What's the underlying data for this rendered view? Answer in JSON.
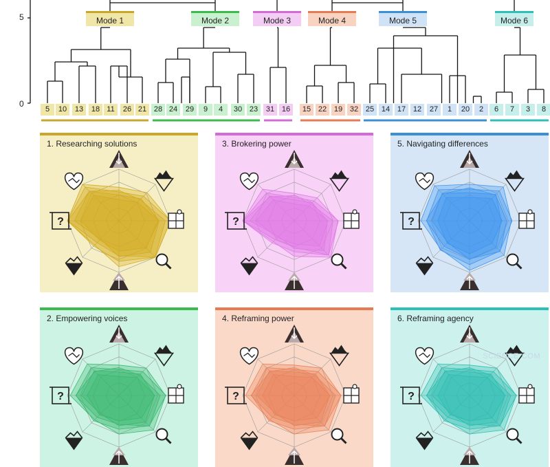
{
  "axis": {
    "tick_top": "5",
    "tick_bottom": "0"
  },
  "modes": [
    {
      "label": "Mode 1",
      "color": "#c9a72a",
      "fill": "#f0e6a8",
      "leaves": [
        "5",
        "10",
        "13",
        "18",
        "11",
        "26",
        "21"
      ]
    },
    {
      "label": "Mode 2",
      "color": "#3cba4c",
      "fill": "#c9f0cf",
      "leaves": [
        "28",
        "24",
        "29",
        "9",
        "4",
        "30",
        "23"
      ]
    },
    {
      "label": "Mode 3",
      "color": "#d36bd6",
      "fill": "#f3cdf4",
      "leaves": [
        "31",
        "16"
      ]
    },
    {
      "label": "Mode 4",
      "color": "#e67a52",
      "fill": "#f9d3c2",
      "leaves": [
        "15",
        "22",
        "19",
        "32"
      ]
    },
    {
      "label": "Mode 5",
      "color": "#3b8fd4",
      "fill": "#cfe2f6",
      "leaves": [
        "25",
        "14",
        "17",
        "12",
        "27",
        "1",
        "20",
        "2"
      ]
    },
    {
      "label": "Mode 6",
      "color": "#2ebfb7",
      "fill": "#c6eeea",
      "leaves": [
        "6",
        "7",
        "3",
        "8"
      ]
    }
  ],
  "panels": [
    {
      "title": "1. Researching solutions",
      "border": "#c9a72a",
      "bg": "#f6efc6",
      "radar": "#d4ac1f"
    },
    {
      "title": "3. Brokering power",
      "border": "#d36bd6",
      "bg": "#f9d2f7",
      "radar": "#e07ae6"
    },
    {
      "title": "5. Navigating differences",
      "border": "#3b8fd4",
      "bg": "#d6e6f6",
      "radar": "#3f95ee"
    },
    {
      "title": "2. Empowering voices",
      "border": "#3cba4c",
      "bg": "#ccf3e3",
      "radar": "#3cb86f"
    },
    {
      "title": "4. Reframing power",
      "border": "#e67a52",
      "bg": "#fbd9c8",
      "radar": "#e8845a"
    },
    {
      "title": "6. Reframing agency",
      "border": "#2ebfb7",
      "bg": "#cdf2ee",
      "radar": "#2fbfb2"
    }
  ],
  "icons": [
    "heart-handshake-icon",
    "triangle-down-arrow-icon",
    "iceberg-icon",
    "puzzle-icon",
    "magnifier-icon",
    "triangle-up-arrow-icon",
    "iceberg-dark-icon",
    "question-frame-icon"
  ],
  "watermark": "SCIENCE·COM"
}
